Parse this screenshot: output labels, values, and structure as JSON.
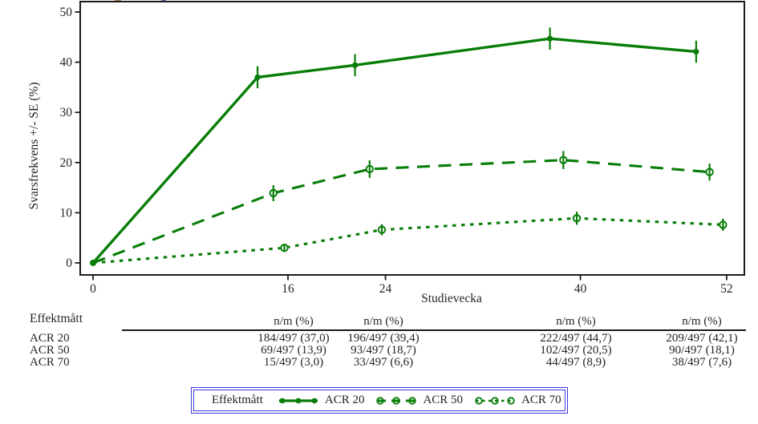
{
  "colors": {
    "series_green": "#087d08",
    "text": "#23232b",
    "axis": "#1b1b1b",
    "legend_border": "#3b3be0"
  },
  "chart_data": {
    "type": "line",
    "title": "",
    "xlabel": "Studievecka",
    "ylabel": "Svarsfrekvens +/- SE (%)",
    "x_ticks": [
      0,
      16,
      24,
      40,
      52
    ],
    "y_ticks": [
      0,
      10,
      20,
      30,
      40,
      50
    ],
    "xlim": [
      -1.1,
      53.5
    ],
    "ylim": [
      -2.4,
      52.1
    ],
    "grid": false,
    "legend_position": "bottom",
    "weeks": [
      0,
      16,
      24,
      40,
      52
    ],
    "series": [
      {
        "name": "ACR 20",
        "line_style": "solid",
        "marker": "filled-circle",
        "values": [
          0,
          37.0,
          39.4,
          44.7,
          42.1
        ],
        "se": [
          0,
          2.2,
          2.2,
          2.2,
          2.2
        ],
        "plot_weeks": [
          0,
          13.5,
          21.5,
          37.5,
          49.5
        ]
      },
      {
        "name": "ACR 50",
        "line_style": "dashed",
        "marker": "open-circle",
        "values": [
          0,
          13.9,
          18.7,
          20.5,
          18.1
        ],
        "se": [
          0,
          1.6,
          1.75,
          1.8,
          1.7
        ],
        "plot_weeks": [
          0,
          14.8,
          22.7,
          38.6,
          50.6
        ]
      },
      {
        "name": "ACR 70",
        "line_style": "dotted",
        "marker": "open-circle",
        "values": [
          0,
          3.0,
          6.6,
          8.9,
          7.6
        ],
        "se": [
          0,
          0.8,
          1.1,
          1.3,
          1.2
        ],
        "plot_weeks": [
          0,
          15.7,
          23.7,
          39.7,
          51.7
        ]
      }
    ]
  },
  "table": {
    "corner_header": "Effektmått",
    "column_headers": [
      "n/m (%)",
      "n/m (%)",
      "n/m (%)",
      "n/m (%)"
    ],
    "rows": [
      {
        "label": "ACR 20",
        "values": [
          "184/497 (37,0)",
          "196/497 (39,4)",
          "222/497 (44,7)",
          "209/497 (42,1)"
        ]
      },
      {
        "label": "ACR 50",
        "values": [
          "69/497 (13,9)",
          "93/497 (18,7)",
          "102/497 (20,5)",
          "90/497 (18,1)"
        ]
      },
      {
        "label": "ACR 70",
        "values": [
          "15/497 (3,0)",
          "33/497 (6,6)",
          "44/497 (8,9)",
          "38/497 (7,6)"
        ]
      }
    ]
  },
  "legend": {
    "title": "Effektmått",
    "items": [
      {
        "label": "ACR 20",
        "style": "solid"
      },
      {
        "label": "ACR 50",
        "style": "dashed"
      },
      {
        "label": "ACR 70",
        "style": "dotted"
      }
    ]
  }
}
